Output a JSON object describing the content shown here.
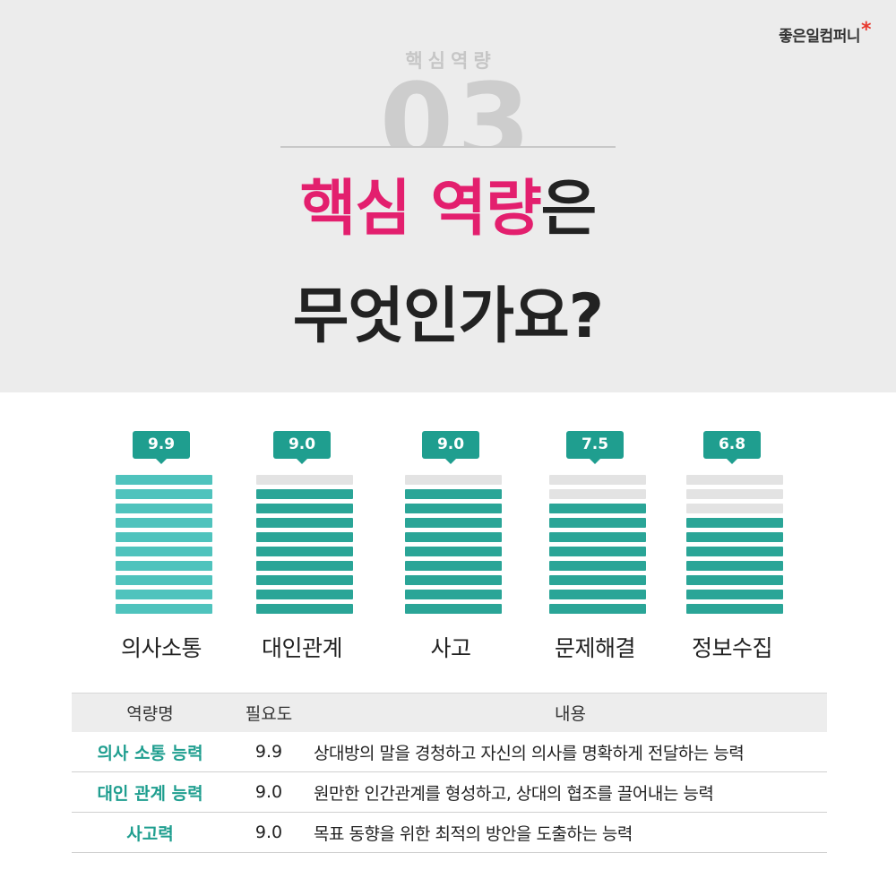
{
  "brand": {
    "name": "좋은일컴퍼니",
    "mark": "*"
  },
  "section": {
    "label": "핵심역량",
    "number": "03"
  },
  "headline": {
    "accent": "핵심 역량",
    "suffix": "은",
    "line2": "무엇인가요?"
  },
  "colors": {
    "accent_pink": "#e31f6e",
    "teal": "#2aa597",
    "badge": "#1f9e8f",
    "empty_segment": "#e3e3e3"
  },
  "chart_data": {
    "type": "bar",
    "categories": [
      "의사소통",
      "대인관계",
      "사고",
      "문제해결",
      "정보수집"
    ],
    "values": [
      9.9,
      9.0,
      9.0,
      7.5,
      6.8
    ],
    "value_labels": [
      "9.9",
      "9.0",
      "9.0",
      "7.5",
      "6.8"
    ],
    "segments_per_bar": 10,
    "ylim": [
      0,
      10
    ],
    "title": "",
    "xlabel": "",
    "ylabel": "",
    "grid": false
  },
  "table": {
    "headers": [
      "역량명",
      "필요도",
      "내용"
    ],
    "rows": [
      {
        "name": "의사 소통 능력",
        "score": "9.9",
        "desc": "상대방의 말을 경청하고 자신의 의사를 명확하게 전달하는 능력"
      },
      {
        "name": "대인 관계 능력",
        "score": "9.0",
        "desc": "원만한 인간관계를 형성하고, 상대의 협조를 끌어내는 능력"
      },
      {
        "name": "사고력",
        "score": "9.0",
        "desc": "목표 동향을 위한 최적의 방안을 도출하는 능력"
      }
    ]
  }
}
